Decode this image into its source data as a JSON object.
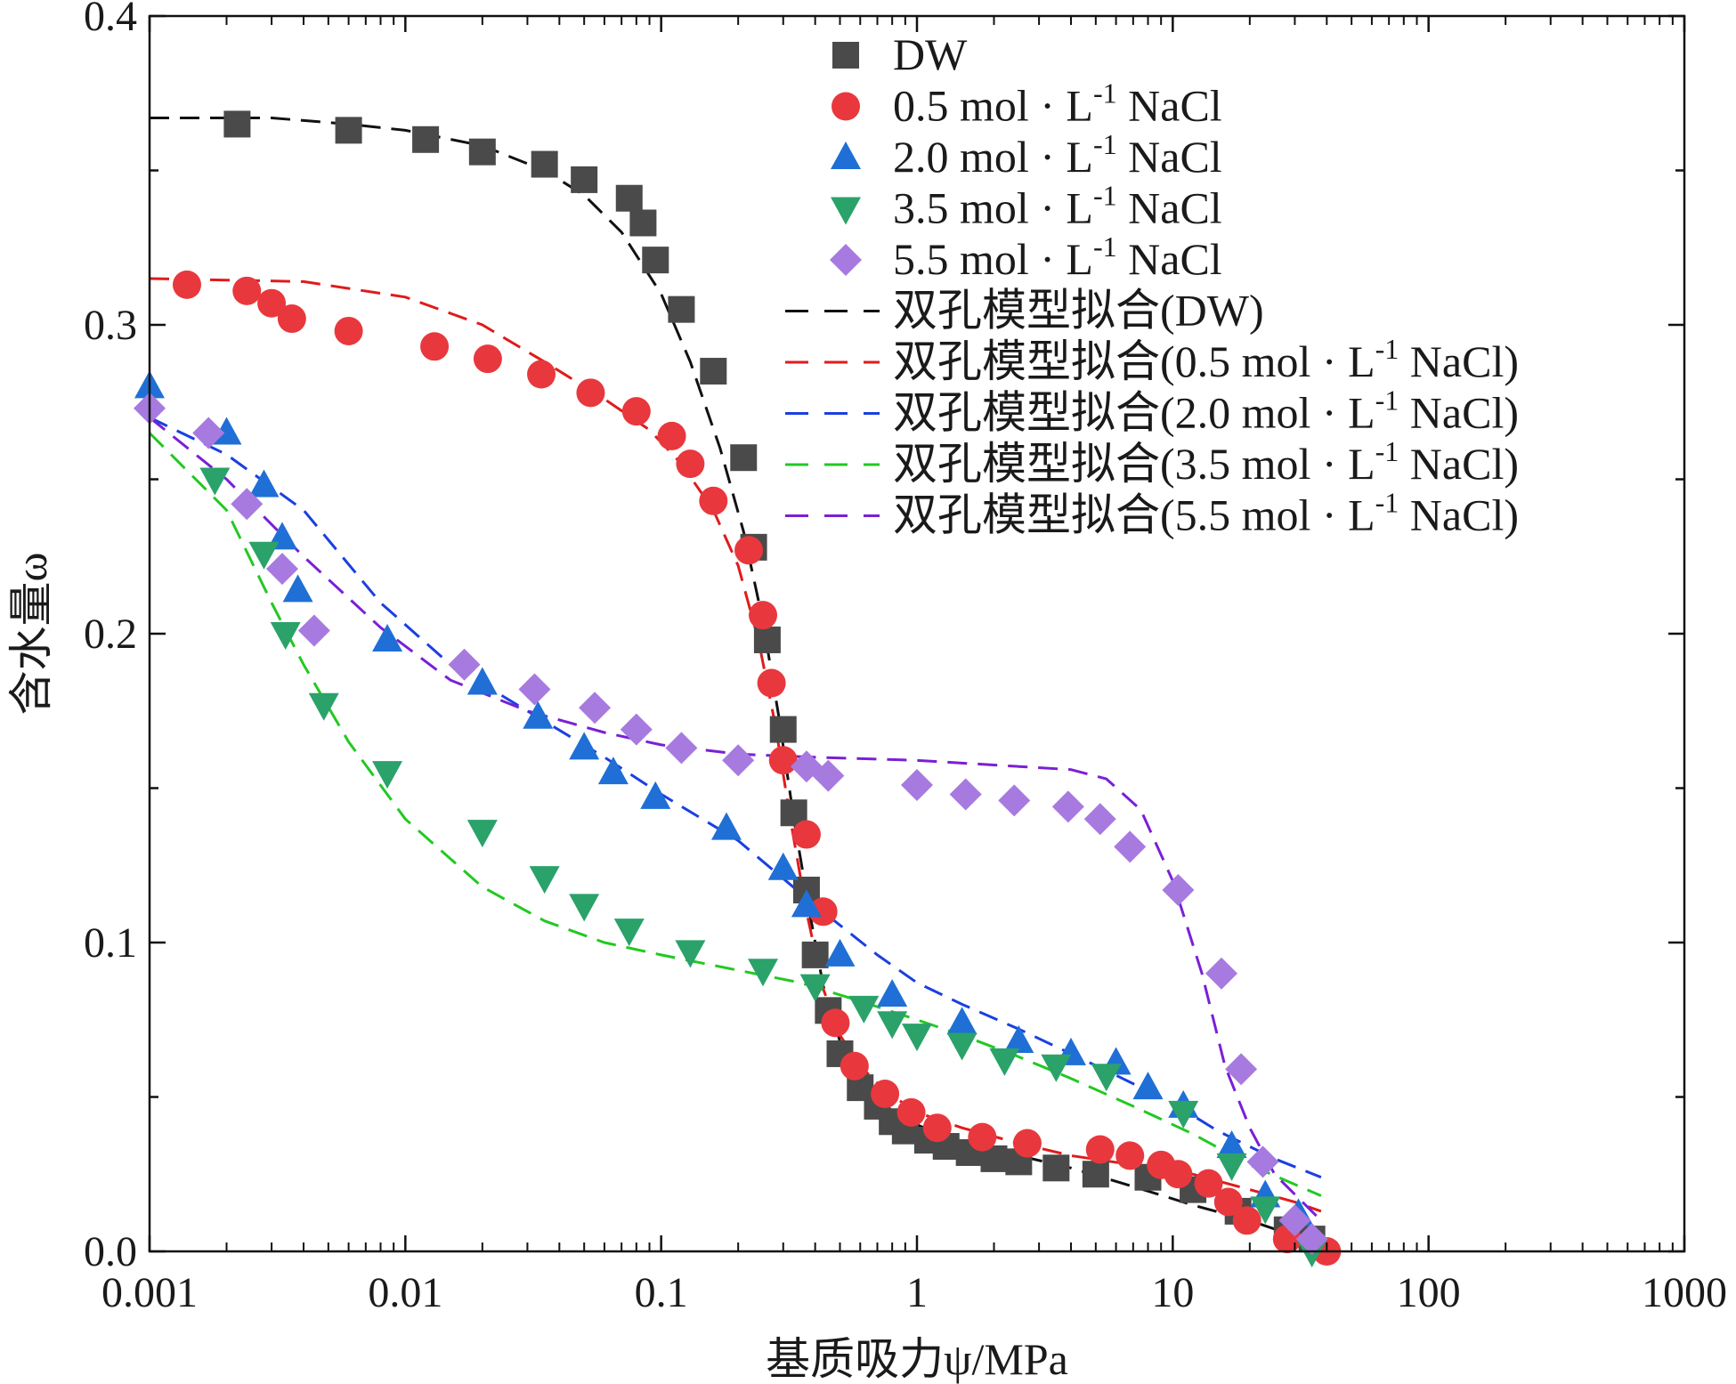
{
  "chart_data": {
    "type": "scatter",
    "xlabel": "基质吸力ψ/MPa",
    "ylabel": "含水量ω",
    "xscale": "log",
    "xlim": [
      0.001,
      1000
    ],
    "ylim": [
      0.0,
      0.4
    ],
    "xticks": [
      "0.001",
      "0.01",
      "0.1",
      "1",
      "10",
      "100",
      "1000"
    ],
    "yticks": [
      "0.0",
      "0.1",
      "0.2",
      "0.3",
      "0.4"
    ],
    "grid": false,
    "legend_position": "top-right",
    "series": [
      {
        "name": "DW",
        "marker": "square",
        "color": "#4a4a4a",
        "x": [
          0.0022,
          0.006,
          0.012,
          0.02,
          0.035,
          0.05,
          0.075,
          0.085,
          0.095,
          0.12,
          0.16,
          0.21,
          0.23,
          0.26,
          0.3,
          0.33,
          0.37,
          0.4,
          0.45,
          0.5,
          0.6,
          0.7,
          0.8,
          0.9,
          1.1,
          1.3,
          1.6,
          2.0,
          2.5,
          3.5,
          5.0,
          8.0,
          12,
          18,
          28,
          35
        ],
        "y": [
          0.365,
          0.363,
          0.36,
          0.356,
          0.352,
          0.347,
          0.341,
          0.333,
          0.321,
          0.305,
          0.285,
          0.257,
          0.228,
          0.198,
          0.169,
          0.142,
          0.117,
          0.096,
          0.078,
          0.064,
          0.053,
          0.047,
          0.042,
          0.039,
          0.036,
          0.034,
          0.032,
          0.03,
          0.029,
          0.027,
          0.025,
          0.024,
          0.02,
          0.013,
          0.007,
          0.004
        ]
      },
      {
        "name": "0.5 mol·L⁻¹ NaCl",
        "marker": "circle",
        "color": "#e8383d",
        "x": [
          0.0014,
          0.0024,
          0.003,
          0.0036,
          0.006,
          0.013,
          0.021,
          0.034,
          0.053,
          0.08,
          0.11,
          0.13,
          0.16,
          0.22,
          0.25,
          0.27,
          0.3,
          0.37,
          0.43,
          0.48,
          0.57,
          0.75,
          0.95,
          1.2,
          1.8,
          2.7,
          5.2,
          6.8,
          9.0,
          10.5,
          13.8,
          16.5,
          19.5,
          28,
          40
        ],
        "y": [
          0.313,
          0.311,
          0.307,
          0.302,
          0.298,
          0.293,
          0.289,
          0.284,
          0.278,
          0.272,
          0.264,
          0.255,
          0.243,
          0.227,
          0.206,
          0.184,
          0.159,
          0.135,
          0.11,
          0.074,
          0.06,
          0.051,
          0.045,
          0.04,
          0.037,
          0.035,
          0.033,
          0.031,
          0.028,
          0.025,
          0.022,
          0.016,
          0.01,
          0.004,
          0.0
        ]
      },
      {
        "name": "2.0 mol·L⁻¹ NaCl",
        "marker": "triangle-up",
        "color": "#1f6fd6",
        "x": [
          0.001,
          0.002,
          0.0028,
          0.0033,
          0.0038,
          0.0085,
          0.02,
          0.033,
          0.05,
          0.065,
          0.095,
          0.18,
          0.3,
          0.37,
          0.5,
          0.8,
          1.5,
          2.5,
          4.0,
          6.0,
          8.0,
          11,
          17,
          23,
          31
        ],
        "y": [
          0.28,
          0.265,
          0.248,
          0.231,
          0.214,
          0.198,
          0.184,
          0.173,
          0.163,
          0.155,
          0.147,
          0.137,
          0.124,
          0.112,
          0.096,
          0.083,
          0.074,
          0.068,
          0.064,
          0.061,
          0.053,
          0.047,
          0.034,
          0.018,
          0.012
        ]
      },
      {
        "name": "3.5 mol·L⁻¹ NaCl",
        "marker": "triangle-down",
        "color": "#2aa26a",
        "x": [
          0.0018,
          0.0028,
          0.0034,
          0.0048,
          0.0085,
          0.02,
          0.035,
          0.05,
          0.075,
          0.13,
          0.25,
          0.4,
          0.62,
          0.8,
          1.0,
          1.5,
          2.2,
          3.5,
          5.5,
          11,
          17,
          23,
          35
        ],
        "y": [
          0.25,
          0.226,
          0.2,
          0.177,
          0.155,
          0.136,
          0.121,
          0.112,
          0.104,
          0.097,
          0.091,
          0.086,
          0.079,
          0.074,
          0.07,
          0.067,
          0.062,
          0.06,
          0.057,
          0.045,
          0.028,
          0.014,
          0.0
        ]
      },
      {
        "name": "5.5 mol·L⁻¹ NaCl",
        "marker": "diamond",
        "color": "#a77ae0",
        "x": [
          0.001,
          0.0017,
          0.0024,
          0.0033,
          0.0044,
          0.017,
          0.032,
          0.055,
          0.08,
          0.12,
          0.2,
          0.37,
          0.45,
          1.0,
          1.55,
          2.4,
          3.9,
          5.2,
          6.8,
          10.5,
          15.5,
          18.5,
          22.5,
          30,
          35
        ],
        "y": [
          0.273,
          0.265,
          0.242,
          0.221,
          0.201,
          0.19,
          0.182,
          0.176,
          0.169,
          0.163,
          0.159,
          0.157,
          0.154,
          0.151,
          0.148,
          0.146,
          0.144,
          0.14,
          0.131,
          0.117,
          0.09,
          0.059,
          0.029,
          0.01,
          0.004
        ]
      }
    ],
    "fits": [
      {
        "name": "双孔模型拟合(DW)",
        "color": "#111111",
        "x": [
          0.001,
          0.003,
          0.006,
          0.01,
          0.02,
          0.035,
          0.05,
          0.07,
          0.1,
          0.13,
          0.17,
          0.21,
          0.25,
          0.29,
          0.33,
          0.38,
          0.43,
          0.5,
          0.6,
          0.75,
          1.0,
          1.5,
          2.5,
          4.0,
          7.0,
          12,
          20,
          30,
          38
        ],
        "y": [
          0.367,
          0.367,
          0.365,
          0.363,
          0.358,
          0.35,
          0.342,
          0.33,
          0.31,
          0.288,
          0.26,
          0.233,
          0.204,
          0.172,
          0.14,
          0.11,
          0.086,
          0.068,
          0.055,
          0.047,
          0.041,
          0.035,
          0.031,
          0.027,
          0.021,
          0.015,
          0.01,
          0.005,
          0.002
        ]
      },
      {
        "name": "双孔模型拟合(0.5 mol·L⁻¹ NaCl)",
        "color": "#e01b1b",
        "x": [
          0.001,
          0.004,
          0.01,
          0.02,
          0.035,
          0.06,
          0.09,
          0.12,
          0.16,
          0.2,
          0.24,
          0.28,
          0.32,
          0.37,
          0.43,
          0.5,
          0.6,
          0.75,
          1.0,
          1.5,
          2.5,
          4.0,
          7.0,
          12,
          20,
          30,
          38
        ],
        "y": [
          0.315,
          0.314,
          0.309,
          0.3,
          0.288,
          0.276,
          0.266,
          0.255,
          0.24,
          0.222,
          0.198,
          0.17,
          0.14,
          0.11,
          0.085,
          0.07,
          0.06,
          0.052,
          0.045,
          0.04,
          0.035,
          0.031,
          0.028,
          0.025,
          0.02,
          0.016,
          0.013
        ]
      },
      {
        "name": "双孔模型拟合(2.0 mol·L⁻¹ NaCl)",
        "color": "#1b3fe0",
        "x": [
          0.001,
          0.002,
          0.004,
          0.008,
          0.015,
          0.03,
          0.06,
          0.1,
          0.2,
          0.4,
          0.7,
          1.0,
          1.5,
          2.5,
          4.0,
          6.0,
          10,
          15,
          25,
          38
        ],
        "y": [
          0.27,
          0.258,
          0.24,
          0.21,
          0.19,
          0.175,
          0.16,
          0.148,
          0.133,
          0.112,
          0.096,
          0.087,
          0.08,
          0.072,
          0.064,
          0.057,
          0.048,
          0.039,
          0.03,
          0.024
        ]
      },
      {
        "name": "双孔模型拟合(3.5 mol·L⁻¹ NaCl)",
        "color": "#22c922",
        "x": [
          0.001,
          0.002,
          0.003,
          0.004,
          0.006,
          0.01,
          0.02,
          0.035,
          0.06,
          0.1,
          0.2,
          0.35,
          0.6,
          1.0,
          1.5,
          2.5,
          4.0,
          7.0,
          12,
          20,
          38
        ],
        "y": [
          0.265,
          0.24,
          0.21,
          0.19,
          0.165,
          0.14,
          0.118,
          0.107,
          0.1,
          0.096,
          0.091,
          0.087,
          0.081,
          0.075,
          0.07,
          0.063,
          0.056,
          0.047,
          0.038,
          0.028,
          0.018
        ]
      },
      {
        "name": "双孔模型拟合(5.5 mol·L⁻¹ NaCl)",
        "color": "#7a1fd6",
        "x": [
          0.001,
          0.002,
          0.004,
          0.008,
          0.015,
          0.03,
          0.06,
          0.1,
          0.2,
          0.4,
          1.0,
          2.5,
          4.0,
          5.5,
          7.5,
          10,
          13,
          16,
          20,
          25,
          38
        ],
        "y": [
          0.27,
          0.25,
          0.225,
          0.202,
          0.185,
          0.175,
          0.168,
          0.164,
          0.161,
          0.16,
          0.159,
          0.157,
          0.156,
          0.153,
          0.143,
          0.12,
          0.09,
          0.06,
          0.04,
          0.025,
          0.01
        ]
      }
    ]
  },
  "legend": {
    "items": [
      "DW",
      "0.5 mol · L",
      "2.0 mol · L",
      "3.5 mol · L",
      "5.5 mol · L"
    ],
    "fit_items": [
      "双孔模型拟合(DW)",
      "双孔模型拟合(0.5 mol · L",
      "双孔模型拟合(2.0 mol · L",
      "双孔模型拟合(3.5 mol · L",
      "双孔模型拟合(5.5 mol · L"
    ],
    "sup": "-1",
    "suffix": " NaCl",
    "fit_suffix": " NaCl)"
  }
}
